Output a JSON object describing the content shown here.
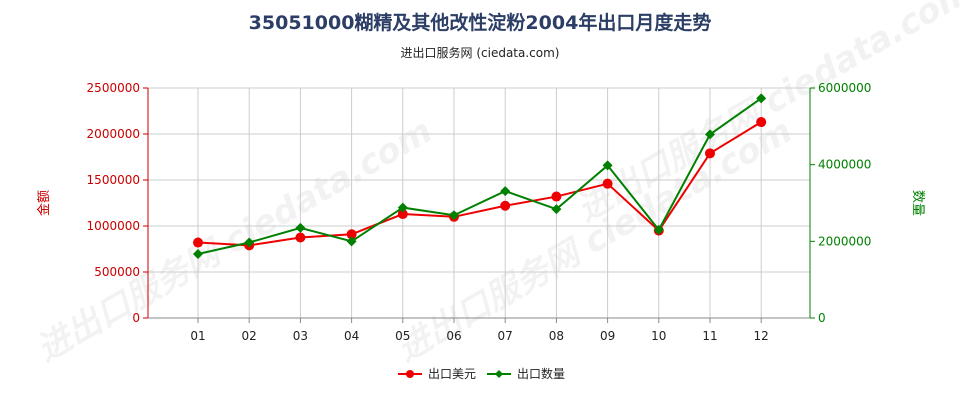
{
  "title": "35051000糊精及其他改性淀粉2004年出口月度走势",
  "subtitle": "进出口服务网 (ciedata.com)",
  "watermark": "进出口服务网 ciedata.com",
  "chart_data": {
    "type": "line",
    "categories": [
      "01",
      "02",
      "03",
      "04",
      "05",
      "06",
      "07",
      "08",
      "09",
      "10",
      "11",
      "12"
    ],
    "y_left": {
      "label": "金额",
      "ylim": [
        0,
        2500000
      ],
      "ticks": [
        "0",
        "500000",
        "1000000",
        "1500000",
        "2000000",
        "2500000"
      ],
      "color": "#cc0000"
    },
    "y_right": {
      "label": "数量",
      "ylim": [
        0,
        6000000
      ],
      "ticks": [
        "0",
        "2000000",
        "4000000",
        "6000000"
      ],
      "color": "#008000"
    },
    "grid": true,
    "legend_position": "bottom",
    "series": [
      {
        "name": "出口美元",
        "axis": "left",
        "color": "#ee0000",
        "values": [
          820000,
          790000,
          875000,
          910000,
          1130000,
          1100000,
          1220000,
          1320000,
          1460000,
          950000,
          1790000,
          2130000
        ]
      },
      {
        "name": "出口数量",
        "axis": "right",
        "color": "#008000",
        "values": [
          1670000,
          1970000,
          2350000,
          2000000,
          2880000,
          2680000,
          3310000,
          2840000,
          3980000,
          2300000,
          4790000,
          5730000
        ]
      }
    ]
  }
}
